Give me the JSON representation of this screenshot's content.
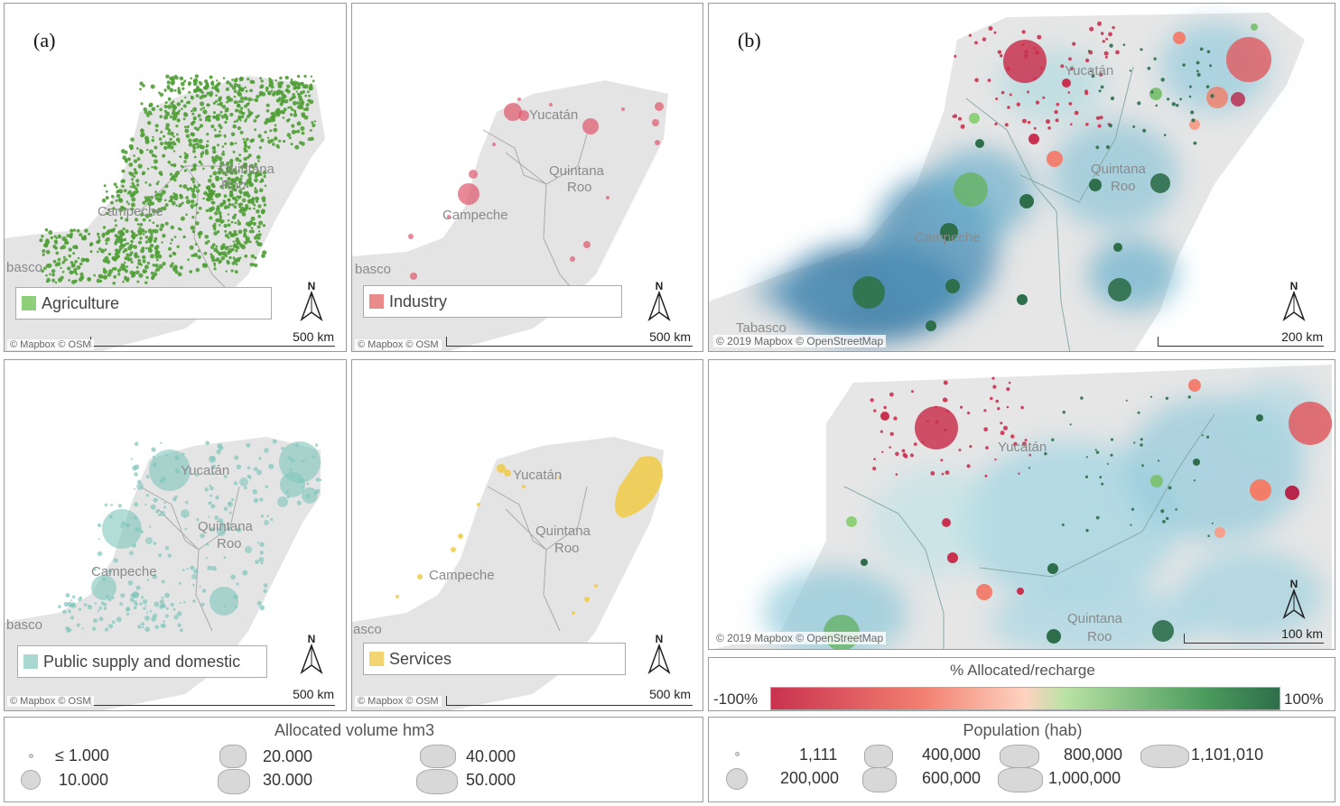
{
  "panels": {
    "agriculture": {
      "label": "(a)",
      "legend": "Agriculture",
      "color": "#58a83c",
      "scale": "500 km",
      "copyright": "© Mapbox © OSM",
      "places": [
        "Campeche",
        "Quintana",
        "Roo",
        "basco"
      ]
    },
    "industry": {
      "legend": "Industry",
      "color": "#e06670",
      "scale": "500 km",
      "copyright": "© Mapbox © OSM",
      "places": [
        "Yucatán",
        "Quintana",
        "Roo",
        "Campeche",
        "basco"
      ]
    },
    "public": {
      "legend": "Public supply and domestic",
      "color": "#8ccfc4",
      "scale": "500 km",
      "copyright": "© Mapbox © OSM",
      "places": [
        "Yucatán",
        "Quintana",
        "Roo",
        "Campeche",
        "basco"
      ]
    },
    "services": {
      "legend": "Services",
      "color": "#f0cf55",
      "scale": "500 km",
      "copyright": "© Mapbox © OSM",
      "places": [
        "Yucatán",
        "Quintana",
        "Roo",
        "Campeche",
        "asco"
      ]
    },
    "b_top": {
      "label": "(b)",
      "scale": "200 km",
      "copyright": "© 2019 Mapbox © OpenStreetMap",
      "places": [
        "Yucatán",
        "Quintana",
        "Roo",
        "Campeche",
        "Tabasco"
      ]
    },
    "b_bottom": {
      "scale": "100 km",
      "copyright": "© 2019 Mapbox © OpenStreetMap",
      "places": [
        "Yucatán",
        "Quintana",
        "Roo"
      ]
    }
  },
  "north_label": "N",
  "ratio_legend": {
    "title": "% Allocated/recharge",
    "min_label": "-100%",
    "max_label": "100%",
    "colors": [
      "#c9324f",
      "#f28070",
      "#fdd3c0",
      "#b8e2a4",
      "#4c9c5e",
      "#2e6e4a"
    ]
  },
  "volume_legend": {
    "title": "Allocated volume hm3",
    "items": [
      "≤ 1.000",
      "10.000",
      "20.000",
      "30.000",
      "40.000",
      "50.000"
    ]
  },
  "population_legend": {
    "title": "Population (hab)",
    "items": [
      "1,111",
      "200,000",
      "400,000",
      "600,000",
      "800,000",
      "1,000,000",
      "1,101,010"
    ]
  }
}
